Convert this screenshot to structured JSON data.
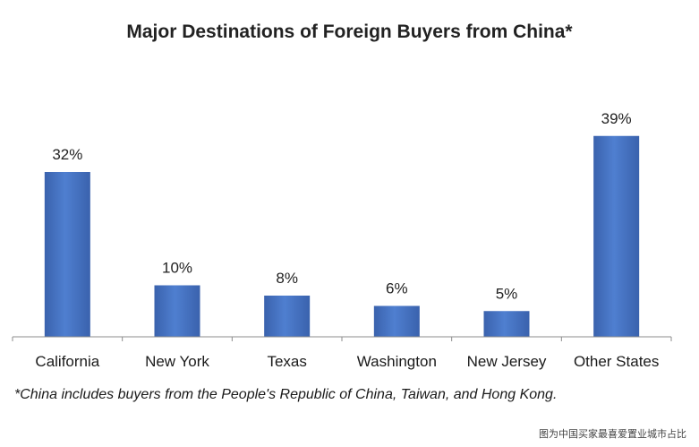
{
  "chart_data": {
    "type": "bar",
    "title": "Major Destinations of Foreign Buyers from China*",
    "categories": [
      "California",
      "New York",
      "Texas",
      "Washington",
      "New Jersey",
      "Other States"
    ],
    "values": [
      32,
      10,
      8,
      6,
      5,
      39
    ],
    "value_labels": [
      "32%",
      "10%",
      "8%",
      "6%",
      "5%",
      "39%"
    ],
    "ylim": [
      0,
      40
    ],
    "grid": false,
    "bar_color": "#4472c4",
    "bar_color_dark": "#2f5597"
  },
  "footnote": "*China includes buyers from the People's Republic of China, Taiwan, and Hong Kong.",
  "source_note": "图为中国买家最喜爱置业城市占比"
}
